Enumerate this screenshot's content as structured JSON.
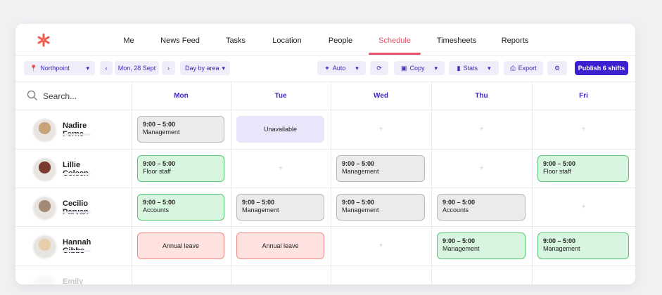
{
  "nav": {
    "items": [
      "Me",
      "News Feed",
      "Tasks",
      "Location",
      "People",
      "Schedule",
      "Timesheets",
      "Reports"
    ],
    "active": 5
  },
  "toolbar": {
    "location": "Northpoint",
    "date": "Mon, 28 Sept",
    "view": "Day by area",
    "auto": "Auto",
    "copy": "Copy",
    "stats": "Stats",
    "export": "Export",
    "publish": "Publish 6 shifts"
  },
  "search": {
    "placeholder": "Search..."
  },
  "days": [
    "Mon",
    "Tue",
    "Wed",
    "Thu",
    "Fri"
  ],
  "rows": [
    {
      "name": "Nadire Ferne",
      "cells": [
        {
          "kind": "shift",
          "color": "gray",
          "time": "9:00 – 5:00",
          "role": "Management"
        },
        {
          "kind": "unavailable",
          "label": "Unavailable"
        },
        null,
        null,
        null
      ]
    },
    {
      "name": "Lillie Coleen",
      "cells": [
        {
          "kind": "shift",
          "color": "green",
          "time": "9:00 – 5:00",
          "role": "Floor staff"
        },
        null,
        {
          "kind": "shift",
          "color": "gray",
          "time": "9:00 – 5:00",
          "role": "Management"
        },
        null,
        {
          "kind": "shift",
          "color": "green",
          "time": "9:00 – 5:00",
          "role": "Floor staff"
        }
      ]
    },
    {
      "name": "Cecilio Parvan",
      "cells": [
        {
          "kind": "shift",
          "color": "green",
          "time": "9:00 – 5:00",
          "role": "Accounts"
        },
        {
          "kind": "shift",
          "color": "gray",
          "time": "9:00 – 5:00",
          "role": "Management"
        },
        {
          "kind": "shift",
          "color": "gray",
          "time": "9:00 – 5:00",
          "role": "Management"
        },
        {
          "kind": "shift",
          "color": "gray",
          "time": "9:00 – 5:00",
          "role": "Accounts"
        },
        null
      ]
    },
    {
      "name": "Hannah Gibbs",
      "cells": [
        {
          "kind": "leave",
          "label": "Annual leave"
        },
        {
          "kind": "leave",
          "label": "Annual leave"
        },
        null,
        {
          "kind": "shift",
          "color": "green",
          "time": "9:00 – 5:00",
          "role": "Management"
        },
        {
          "kind": "shift",
          "color": "green",
          "time": "9:00 – 5:00",
          "role": "Management"
        }
      ]
    },
    {
      "name": "Emily Stewart",
      "cells": [
        null,
        null,
        null,
        null,
        null
      ]
    }
  ]
}
